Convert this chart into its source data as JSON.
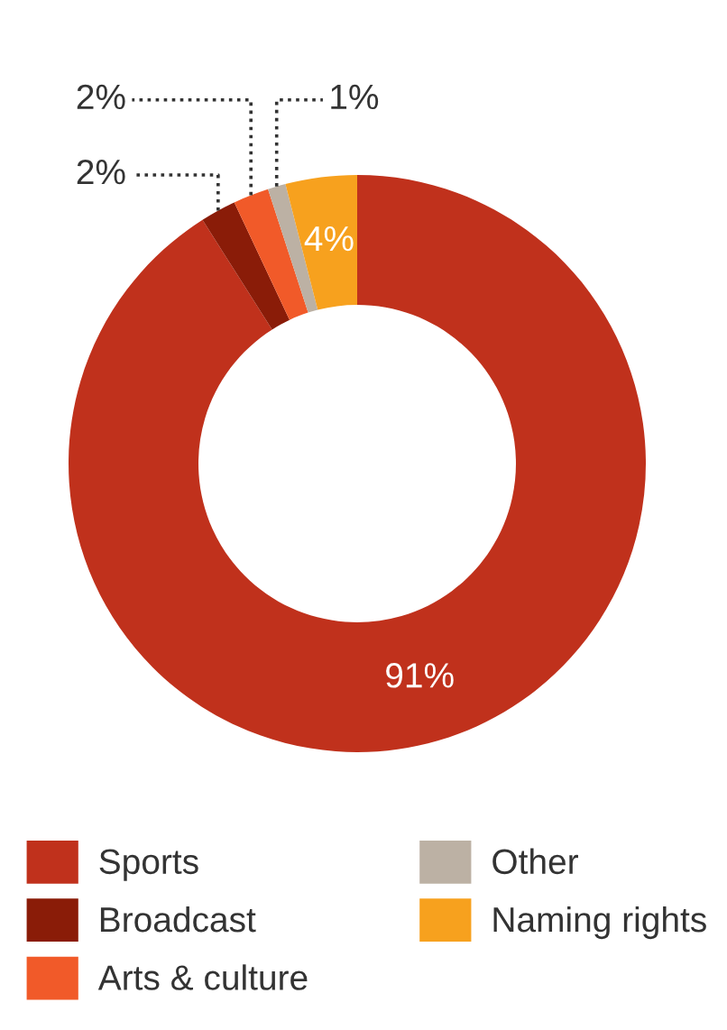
{
  "chart_data": {
    "type": "donut",
    "categories": [
      "Sports",
      "Broadcast",
      "Arts & culture",
      "Other",
      "Naming rights"
    ],
    "values": [
      91,
      2,
      2,
      1,
      4
    ],
    "colors": [
      "#c0311c",
      "#8a1c08",
      "#f15a29",
      "#bcb1a4",
      "#f7a11e"
    ],
    "value_labels": [
      "91%",
      "2%",
      "2%",
      "1%",
      "4%"
    ],
    "legend": "bottom"
  }
}
